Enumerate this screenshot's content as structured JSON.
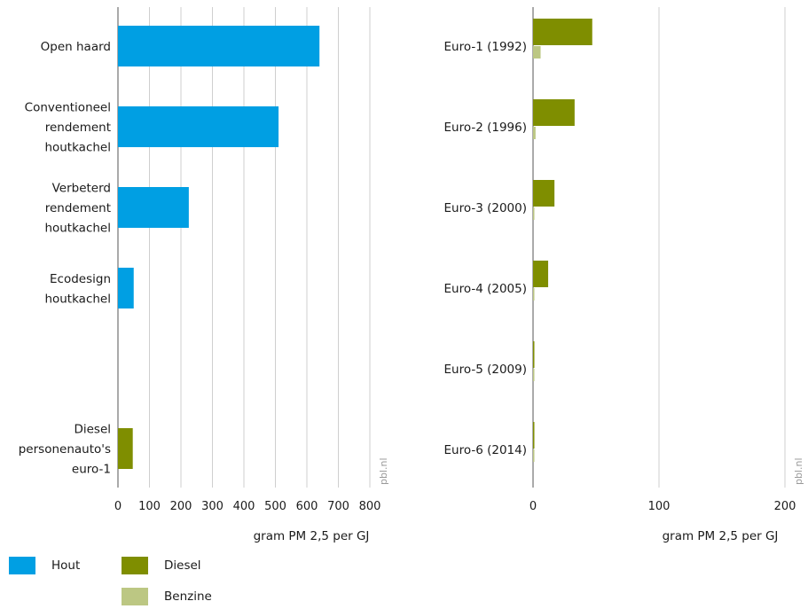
{
  "chart_data": [
    {
      "type": "bar",
      "orientation": "horizontal",
      "categories": [
        "Open haard",
        "Conventioneel rendement houtkachel",
        "Verbeterd rendement houtkachel",
        "Ecodesign houtkachel",
        "Diesel personenauto's euro-1"
      ],
      "category_lines": [
        [
          "Open haard"
        ],
        [
          "Conventioneel",
          "rendement",
          "houtkachel"
        ],
        [
          "Verbeterd",
          "rendement",
          "houtkachel"
        ],
        [
          "Ecodesign",
          "houtkachel"
        ],
        [
          "Diesel",
          "personenauto's",
          "euro-1"
        ]
      ],
      "series": [
        {
          "name": "Hout",
          "color": "#009fe3",
          "values": [
            640,
            510,
            225,
            50,
            null
          ]
        },
        {
          "name": "Diesel",
          "color": "#7f8e00",
          "values": [
            null,
            null,
            null,
            null,
            47
          ]
        }
      ],
      "xlim": [
        0,
        800
      ],
      "xticks": [
        "0",
        "100",
        "200",
        "300",
        "400",
        "500",
        "600",
        "700",
        "800"
      ],
      "xlabel": "gram PM 2,5 per GJ",
      "credit": "pbl.nl",
      "grid": true
    },
    {
      "type": "bar",
      "orientation": "horizontal",
      "categories": [
        "Euro-1 (1992)",
        "Euro-2 (1996)",
        "Euro-3 (2000)",
        "Euro-4 (2005)",
        "Euro-5 (2009)",
        "Euro-6 (2014)"
      ],
      "series": [
        {
          "name": "Diesel",
          "color": "#7f8e00",
          "values": [
            47,
            33,
            17,
            12,
            1,
            1
          ]
        },
        {
          "name": "Benzine",
          "color": "#bcc783",
          "values": [
            6,
            2,
            1,
            1,
            1,
            1
          ]
        }
      ],
      "xlim": [
        0,
        200
      ],
      "xticks": [
        "0",
        "100",
        "200"
      ],
      "xlabel": "gram PM 2,5 per GJ",
      "credit": "pbl.nl",
      "grid": true
    }
  ],
  "legend": [
    {
      "label": "Hout",
      "color": "#009fe3"
    },
    {
      "label": "Diesel",
      "color": "#7f8e00"
    },
    {
      "label": "Benzine",
      "color": "#bcc783"
    }
  ]
}
